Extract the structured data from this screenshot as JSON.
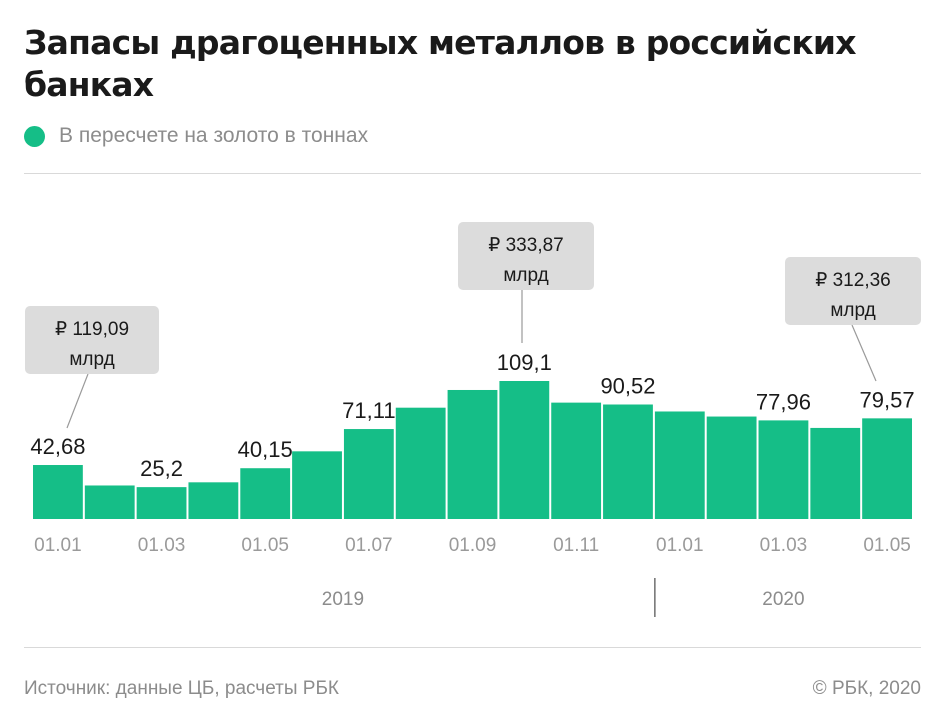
{
  "title": "Запасы драгоценных металлов в российских банках",
  "legend": {
    "label": "В пересчете на золото в тоннах",
    "color": "#15be87"
  },
  "footer": {
    "source": "Источник: данные ЦБ, расчеты РБК",
    "copyright": "© РБК, 2020"
  },
  "chart_data": {
    "type": "bar",
    "categories": [
      "01.01.2019",
      "01.02.2019",
      "01.03.2019",
      "01.04.2019",
      "01.05.2019",
      "01.06.2019",
      "01.07.2019",
      "01.08.2019",
      "01.09.2019",
      "01.10.2019",
      "01.11.2019",
      "01.12.2019",
      "01.01.2020",
      "01.02.2020",
      "01.03.2020",
      "01.04.2020",
      "01.05.2020"
    ],
    "values": [
      42.68,
      26.5,
      25.2,
      29.0,
      40.15,
      53.5,
      71.11,
      88.0,
      102.0,
      109.1,
      92.0,
      90.52,
      85.0,
      81.0,
      77.96,
      72.0,
      79.57
    ],
    "value_labels": [
      "42,68",
      "",
      "25,2",
      "",
      "40,15",
      "",
      "71,11",
      "",
      "",
      "109,1",
      "",
      "90,52",
      "",
      "",
      "77,96",
      "",
      "79,57"
    ],
    "x_ticks": [
      {
        "index": 0,
        "label": "01.01"
      },
      {
        "index": 2,
        "label": "01.03"
      },
      {
        "index": 4,
        "label": "01.05"
      },
      {
        "index": 6,
        "label": "01.07"
      },
      {
        "index": 8,
        "label": "01.09"
      },
      {
        "index": 10,
        "label": "01.11"
      },
      {
        "index": 12,
        "label": "01.01"
      },
      {
        "index": 14,
        "label": "01.03"
      },
      {
        "index": 16,
        "label": "01.05"
      }
    ],
    "years": [
      {
        "label": "2019",
        "from_index": 0,
        "to_index": 11
      },
      {
        "label": "2020",
        "from_index": 12,
        "to_index": 16
      }
    ],
    "callouts": [
      {
        "index": 0,
        "line1": "₽ 119,09",
        "line2": "млрд"
      },
      {
        "index": 9,
        "line1": "₽ 333,87",
        "line2": "млрд"
      },
      {
        "index": 16,
        "line1": "₽ 312,36",
        "line2": "млрд"
      }
    ],
    "ylim": [
      0,
      109.1
    ],
    "bar_color": "#15be87",
    "grid": false
  }
}
